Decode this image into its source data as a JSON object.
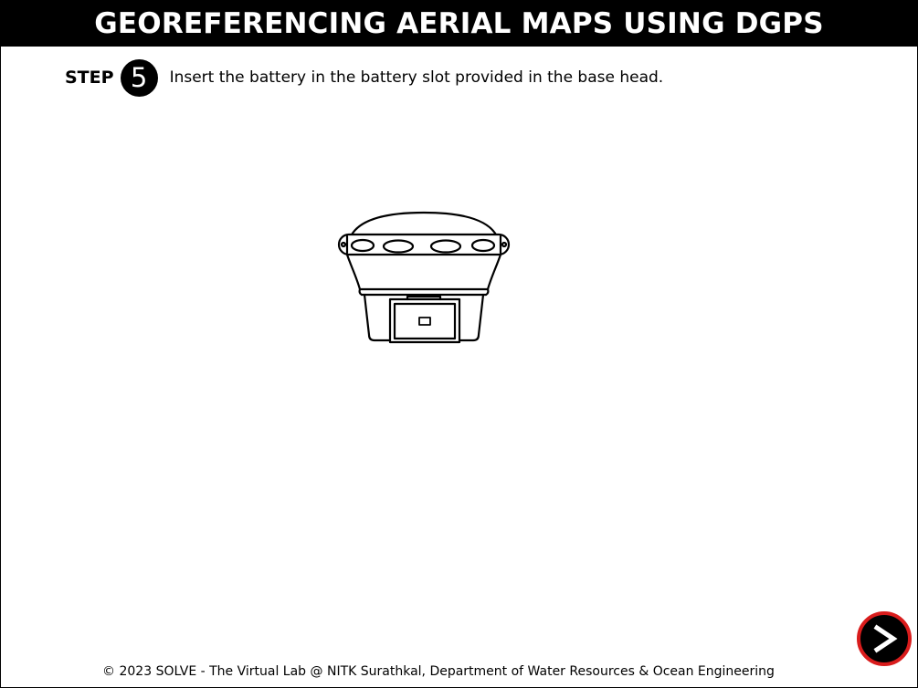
{
  "header": {
    "title": "GEOREFERENCING AERIAL MAPS USING DGPS"
  },
  "step": {
    "label": "STEP",
    "number": "5",
    "instruction": "Insert the battery in the battery slot provided in the base head."
  },
  "illustration": {
    "icon": "dgps-base-head-icon"
  },
  "navigation": {
    "next_icon": "chevron-right-icon",
    "accent_color": "#d91c1c"
  },
  "footer": {
    "copyright": "© 2023 SOLVE - The Virtual Lab @ NITK Surathkal, Department of Water Resources & Ocean Engineering"
  }
}
